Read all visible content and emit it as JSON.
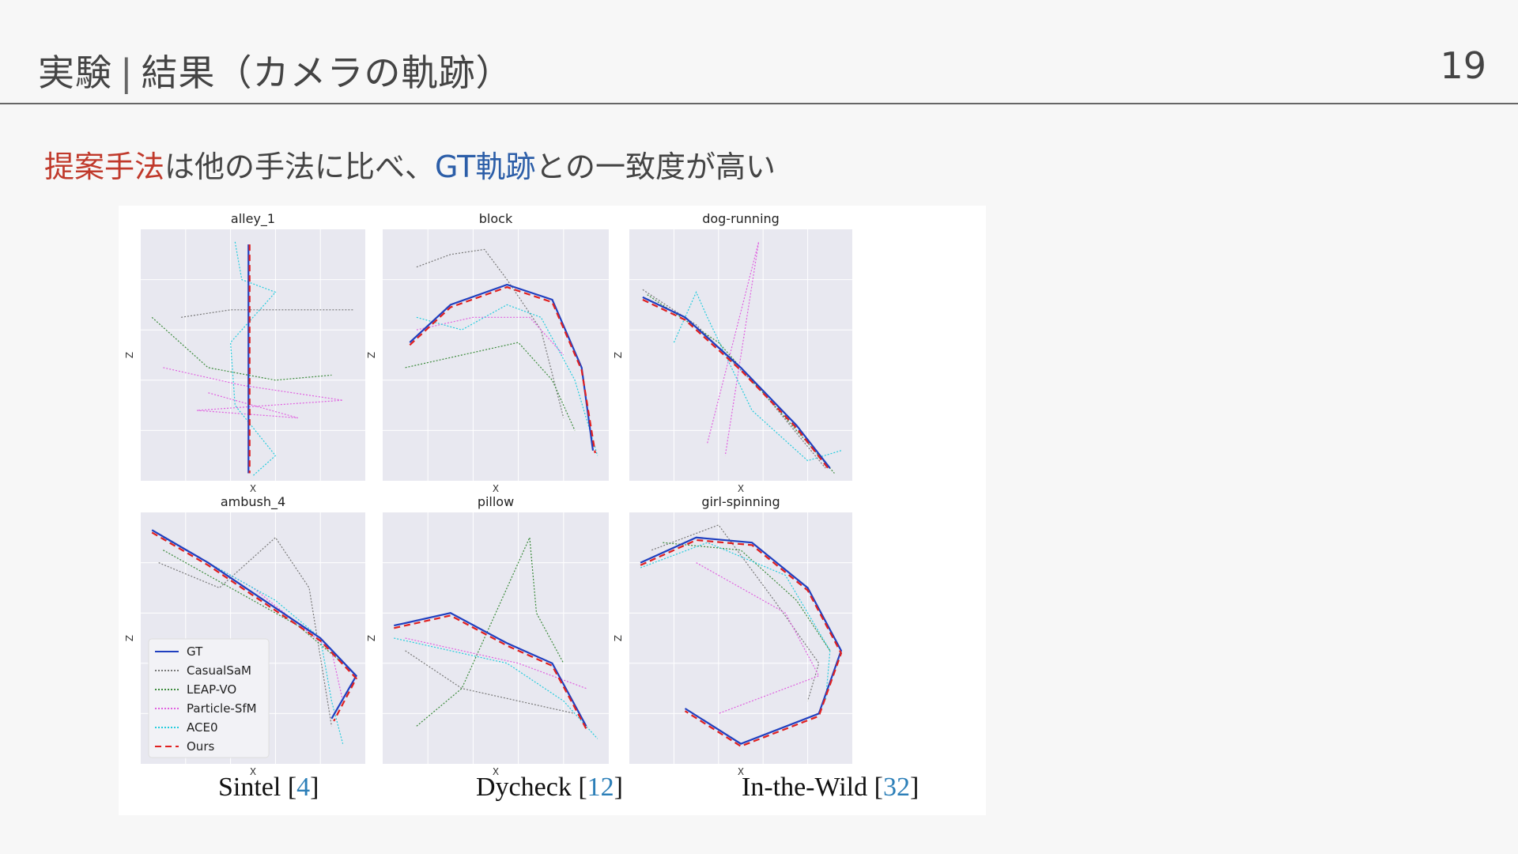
{
  "slide": {
    "title_main": "実験",
    "title_sep": "|",
    "title_sub": "結果（カメラの軌跡）",
    "page_number": "19"
  },
  "subtitle": {
    "part1": "提案手法",
    "part2": "は他の手法に比べ、",
    "part3": "GT軌跡",
    "part4": "との一致度が高い"
  },
  "colors": {
    "accent_red": "#c0392b",
    "accent_blue": "#2c5ea8",
    "plot_bg": "#e8e8f0"
  },
  "captions": [
    {
      "name": "Sintel",
      "open": " [",
      "ref": "4",
      "close": "]"
    },
    {
      "name": "Dycheck",
      "open": " [",
      "ref": "12",
      "close": "]"
    },
    {
      "name": "In-the-Wild",
      "open": " [",
      "ref": "32",
      "close": "]"
    }
  ],
  "chart_data": {
    "type": "line",
    "legend": {
      "placement": "lower-left of ambush_4 panel",
      "entries": [
        {
          "label": "GT",
          "color": "#1f3fbf",
          "style": "solid"
        },
        {
          "label": "CasualSaM",
          "color": "#777777",
          "style": "dotted"
        },
        {
          "label": "LEAP-VO",
          "color": "#3a8a3a",
          "style": "dotted"
        },
        {
          "label": "Particle-SfM",
          "color": "#e060e0",
          "style": "dotted"
        },
        {
          "label": "ACE0",
          "color": "#22ccdd",
          "style": "dotted"
        },
        {
          "label": "Ours",
          "color": "#e02020",
          "style": "dashed"
        }
      ]
    },
    "panels": [
      {
        "title": "alley_1",
        "xlabel": "X",
        "ylabel": "Z",
        "grid": true
      },
      {
        "title": "block",
        "xlabel": "X",
        "ylabel": "Z",
        "grid": true
      },
      {
        "title": "dog-running",
        "xlabel": "X",
        "ylabel": "Z",
        "grid": true
      },
      {
        "title": "ambush_4",
        "xlabel": "X",
        "ylabel": "Z",
        "grid": true
      },
      {
        "title": "pillow",
        "xlabel": "X",
        "ylabel": "Z",
        "grid": true
      },
      {
        "title": "girl-spinning",
        "xlabel": "X",
        "ylabel": "Z",
        "grid": true
      }
    ]
  }
}
